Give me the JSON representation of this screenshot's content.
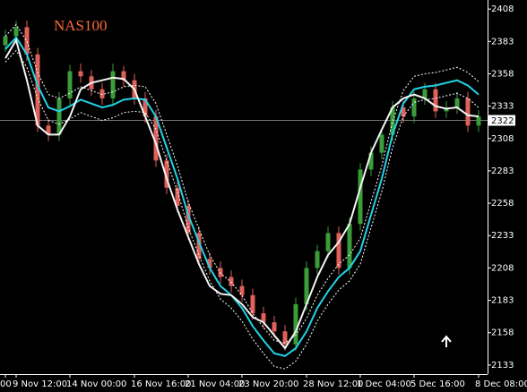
{
  "chart_data": {
    "type": "candlestick",
    "title": "NAS100",
    "categories": [
      "00",
      "9 Nov 12:00",
      null,
      null,
      null,
      null,
      "14 Nov 00:00",
      null,
      null,
      null,
      null,
      null,
      "16 Nov 16:00",
      null,
      null,
      null,
      null,
      "21 Nov 04:00",
      null,
      null,
      null,
      null,
      "23 Nov 20:00",
      null,
      null,
      null,
      null,
      null,
      "28 Nov 12:00",
      null,
      null,
      null,
      null,
      "1 Dec 04:00",
      null,
      null,
      null,
      null,
      "5 Dec 16:00",
      null,
      null,
      null,
      null,
      null,
      "8 Dec 08:00"
    ],
    "open": [
      2380,
      2387,
      2394,
      2373,
      2318,
      2311,
      2339,
      2360,
      2356,
      2346,
      2339,
      2360,
      2353,
      2339,
      2325,
      2291,
      2270,
      2256,
      2235,
      2215,
      2208,
      2201,
      2194,
      2187,
      2173,
      2166,
      2159,
      2149,
      2180,
      2208,
      2221,
      2235,
      2208,
      2242,
      2284,
      2297,
      2311,
      2332,
      2325,
      2339,
      2346,
      2329,
      2332,
      2339,
      2318
    ],
    "high": [
      2392,
      2399,
      2399,
      2378,
      2323,
      2344,
      2365,
      2366,
      2361,
      2351,
      2366,
      2364,
      2358,
      2344,
      2330,
      2296,
      2275,
      2261,
      2240,
      2220,
      2213,
      2206,
      2199,
      2192,
      2178,
      2171,
      2164,
      2185,
      2213,
      2226,
      2240,
      2240,
      2247,
      2289,
      2302,
      2316,
      2337,
      2337,
      2344,
      2351,
      2351,
      2337,
      2344,
      2344,
      2330
    ],
    "low": [
      2375,
      2382,
      2368,
      2313,
      2306,
      2306,
      2334,
      2351,
      2341,
      2334,
      2334,
      2348,
      2334,
      2320,
      2286,
      2265,
      2251,
      2230,
      2210,
      2203,
      2196,
      2189,
      2182,
      2168,
      2161,
      2154,
      2144,
      2144,
      2175,
      2203,
      2216,
      2203,
      2203,
      2237,
      2279,
      2292,
      2306,
      2320,
      2320,
      2334,
      2324,
      2324,
      2327,
      2313,
      2313
    ],
    "close": [
      2387,
      2394,
      2373,
      2318,
      2311,
      2339,
      2360,
      2356,
      2346,
      2339,
      2360,
      2353,
      2339,
      2325,
      2291,
      2270,
      2256,
      2235,
      2215,
      2208,
      2201,
      2194,
      2187,
      2173,
      2166,
      2159,
      2149,
      2180,
      2208,
      2221,
      2235,
      2208,
      2242,
      2284,
      2297,
      2311,
      2332,
      2325,
      2339,
      2346,
      2329,
      2332,
      2339,
      2318,
      2325
    ],
    "up_color": "#3a9d3a",
    "down_color": "#e0605a",
    "series": [
      {
        "color": "#ffffff",
        "style": "dotted",
        "values": [
          2387,
          2396,
          2383,
          2359,
          2342,
          2339,
          2343,
          2348,
          2345,
          2342,
          2344,
          2348,
          2349,
          2348,
          2335,
          2311,
          2287,
          2259,
          2238,
          2218,
          2204,
          2197,
          2187,
          2173,
          2162,
          2152,
          2150,
          2156,
          2169,
          2187,
          2200,
          2211,
          2218,
          2231,
          2259,
          2287,
          2321,
          2345,
          2356,
          2358,
          2359,
          2361,
          2363,
          2359,
          2352
        ]
      },
      {
        "color": "#ffffff",
        "style": "dotted",
        "values": [
          2367,
          2376,
          2363,
          2339,
          2322,
          2319,
          2323,
          2328,
          2325,
          2322,
          2324,
          2328,
          2329,
          2328,
          2315,
          2291,
          2267,
          2239,
          2218,
          2198,
          2184,
          2177,
          2167,
          2153,
          2142,
          2132,
          2130,
          2136,
          2149,
          2167,
          2180,
          2191,
          2198,
          2211,
          2239,
          2267,
          2301,
          2325,
          2336,
          2338,
          2339,
          2341,
          2343,
          2339,
          2332
        ]
      },
      {
        "color": "#22d3e6",
        "style": "solid",
        "values": [
          2377,
          2386,
          2373,
          2349,
          2332,
          2329,
          2333,
          2338,
          2335,
          2332,
          2334,
          2338,
          2339,
          2338,
          2325,
          2301,
          2277,
          2249,
          2228,
          2208,
          2194,
          2187,
          2177,
          2163,
          2152,
          2142,
          2140,
          2146,
          2159,
          2177,
          2190,
          2201,
          2208,
          2221,
          2249,
          2277,
          2311,
          2335,
          2346,
          2348,
          2349,
          2351,
          2353,
          2349,
          2342
        ]
      },
      {
        "color": "#f4f4f4",
        "style": "solid",
        "values": [
          2370,
          2384,
          2353,
          2318,
          2311,
          2311,
          2325,
          2346,
          2351,
          2353,
          2355,
          2354,
          2346,
          2325,
          2304,
          2277,
          2253,
          2232,
          2211,
          2194,
          2188,
          2187,
          2180,
          2170,
          2166,
          2156,
          2146,
          2159,
          2180,
          2201,
          2218,
          2228,
          2242,
          2270,
          2297,
          2315,
          2332,
          2339,
          2342,
          2339,
          2333,
          2331,
          2332,
          2326,
          2325
        ]
      }
    ],
    "ylim": [
      2126,
      2415
    ],
    "yticks": [
      2408,
      2383,
      2358,
      2333,
      2308,
      2283,
      2258,
      2233,
      2208,
      2183,
      2158,
      2133
    ],
    "current_price": 2322
  }
}
